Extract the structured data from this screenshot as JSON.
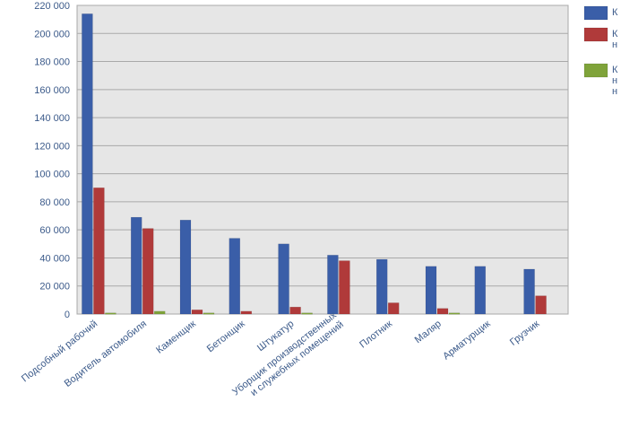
{
  "chart_data": {
    "type": "bar",
    "title": "",
    "xlabel": "",
    "ylabel": "",
    "ylim": [
      0,
      220000
    ],
    "yticks": [
      0,
      20000,
      40000,
      60000,
      80000,
      100000,
      120000,
      140000,
      160000,
      180000,
      200000,
      220000
    ],
    "ytick_labels": [
      "0",
      "20 000",
      "40 000",
      "60 000",
      "80 000",
      "100 000",
      "120 000",
      "140 000",
      "160 000",
      "180 000",
      "200 000",
      "220 000"
    ],
    "grid": true,
    "legend_position": "right",
    "categories": [
      [
        "Подсобный рабочий"
      ],
      [
        "Водитель автомобиля"
      ],
      [
        "Каменщик"
      ],
      [
        "Бетонщик"
      ],
      [
        "Штукатур"
      ],
      [
        "Уборщик производственных",
        "и служебных помещений"
      ],
      [
        "Плотник"
      ],
      [
        "Маляр"
      ],
      [
        "Арматурщик"
      ],
      [
        "Грузчик"
      ]
    ],
    "series": [
      {
        "legend_label": [
          "К"
        ],
        "color": "#3a5ea8",
        "values": [
          214000,
          69000,
          67000,
          54000,
          50000,
          42000,
          39000,
          34000,
          34000,
          32000
        ]
      },
      {
        "legend_label": [
          "К",
          "н"
        ],
        "color": "#b03a3a",
        "values": [
          90000,
          61000,
          3000,
          2000,
          5000,
          38000,
          8000,
          4000,
          0,
          13000
        ]
      },
      {
        "legend_label": [
          "К",
          "н",
          "н"
        ],
        "color": "#7fa33a",
        "values": [
          800,
          2000,
          800,
          0,
          800,
          0,
          0,
          800,
          0,
          0
        ]
      }
    ]
  }
}
